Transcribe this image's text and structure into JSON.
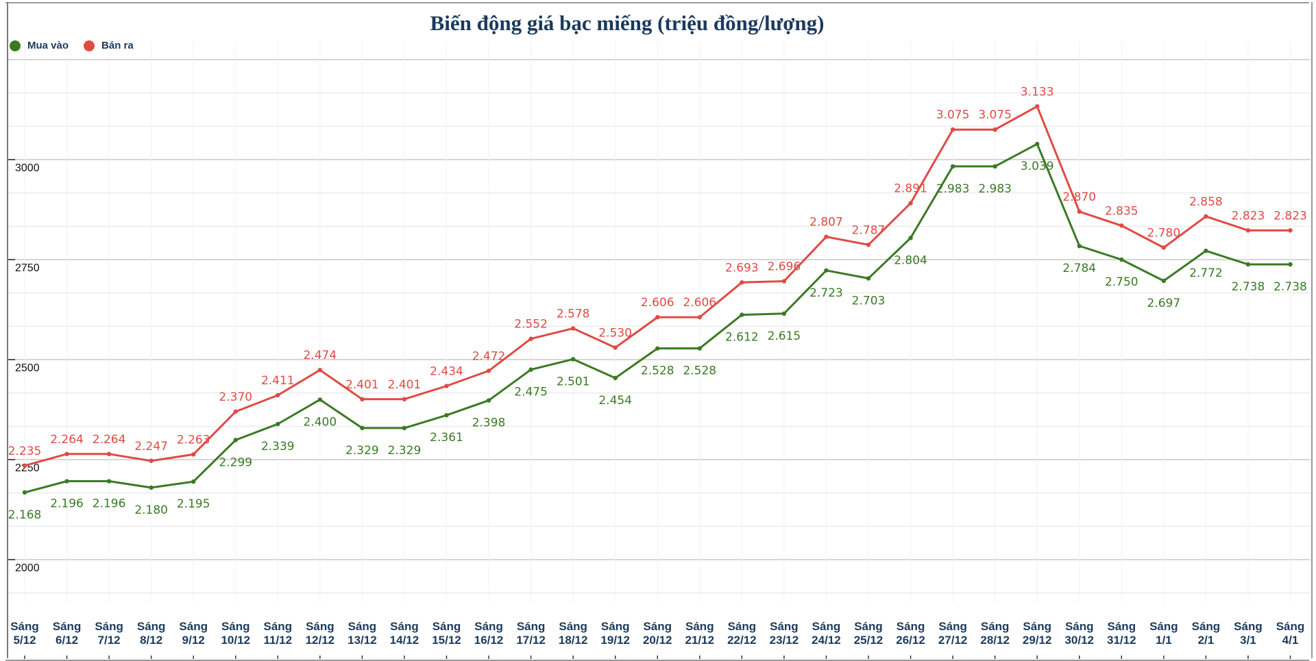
{
  "chart_data": {
    "type": "line",
    "title": "Biến động giá bạc miếng (triệu đồng/lượng)",
    "xlabel": "",
    "ylabel": "",
    "ylim": [
      1850,
      3250
    ],
    "yticks": [
      2000,
      2250,
      2500,
      2750,
      3000
    ],
    "grid": true,
    "legend_position": "top-left",
    "categories": [
      "Sáng 5/12",
      "Sáng 6/12",
      "Sáng 7/12",
      "Sáng 8/12",
      "Sáng 9/12",
      "Sáng 10/12",
      "Sáng 11/12",
      "Sáng 12/12",
      "Sáng 13/12",
      "Sáng 14/12",
      "Sáng 15/12",
      "Sáng 16/12",
      "Sáng 17/12",
      "Sáng 18/12",
      "Sáng 19/12",
      "Sáng 20/12",
      "Sáng 21/12",
      "Sáng 22/12",
      "Sáng 23/12",
      "Sáng 24/12",
      "Sáng 25/12",
      "Sáng 26/12",
      "Sáng 27/12",
      "Sáng 28/12",
      "Sáng 29/12",
      "Sáng 30/12",
      "Sáng 31/12",
      "Sáng 1/1",
      "Sáng 2/1",
      "Sáng 3/1",
      "Sáng 4/1"
    ],
    "series": [
      {
        "name": "Mua vào",
        "color": "#3a7a23",
        "values": [
          2168,
          2196,
          2196,
          2180,
          2195,
          2299,
          2339,
          2400,
          2329,
          2329,
          2361,
          2398,
          2475,
          2501,
          2454,
          2528,
          2528,
          2612,
          2615,
          2723,
          2703,
          2804,
          2983,
          2983,
          3039,
          2784,
          2750,
          2697,
          2772,
          2738,
          2738
        ],
        "labels": [
          "2.168",
          "2.196",
          "2.196",
          "2.180",
          "2.195",
          "2.299",
          "2.339",
          "2.400",
          "2.329",
          "2.329",
          "2.361",
          "2.398",
          "2.475",
          "2.501",
          "2.454",
          "2.528",
          "2.528",
          "2.612",
          "2.615",
          "2.723",
          "2.703",
          "2.804",
          "2.983",
          "2.983",
          "3.039",
          "2.784",
          "2.750",
          "2.697",
          "2.772",
          "2.738",
          "2.738"
        ]
      },
      {
        "name": "Bán ra",
        "color": "#e04a43",
        "values": [
          2235,
          2264,
          2264,
          2247,
          2263,
          2370,
          2411,
          2474,
          2401,
          2401,
          2434,
          2472,
          2552,
          2578,
          2530,
          2606,
          2606,
          2693,
          2696,
          2807,
          2787,
          2891,
          3075,
          3075,
          3133,
          2870,
          2835,
          2780,
          2858,
          2823,
          2823
        ],
        "labels": [
          "2.235",
          "2.264",
          "2.264",
          "2.247",
          "2.263",
          "2.370",
          "2.411",
          "2.474",
          "2.401",
          "2.401",
          "2.434",
          "2.472",
          "2.552",
          "2.578",
          "2.530",
          "2.606",
          "2.606",
          "2.693",
          "2.696",
          "2.807",
          "2.787",
          "2.891",
          "3.075",
          "3.075",
          "3.133",
          "2.870",
          "2.835",
          "2.780",
          "2.858",
          "2.823",
          "2.823"
        ]
      }
    ]
  },
  "legend": {
    "items": [
      {
        "label": "Mua vào",
        "color": "#3a7a23"
      },
      {
        "label": "Bán ra",
        "color": "#e04a43"
      }
    ]
  },
  "x_labels": [
    [
      "Sáng",
      "5/12"
    ],
    [
      "Sáng",
      "6/12"
    ],
    [
      "Sáng",
      "7/12"
    ],
    [
      "Sáng",
      "8/12"
    ],
    [
      "Sáng",
      "9/12"
    ],
    [
      "Sáng",
      "10/12"
    ],
    [
      "Sáng",
      "11/12"
    ],
    [
      "Sáng",
      "12/12"
    ],
    [
      "Sáng",
      "13/12"
    ],
    [
      "Sáng",
      "14/12"
    ],
    [
      "Sáng",
      "15/12"
    ],
    [
      "Sáng",
      "16/12"
    ],
    [
      "Sáng",
      "17/12"
    ],
    [
      "Sáng",
      "18/12"
    ],
    [
      "Sáng",
      "19/12"
    ],
    [
      "Sáng",
      "20/12"
    ],
    [
      "Sáng",
      "21/12"
    ],
    [
      "Sáng",
      "22/12"
    ],
    [
      "Sáng",
      "23/12"
    ],
    [
      "Sáng",
      "24/12"
    ],
    [
      "Sáng",
      "25/12"
    ],
    [
      "Sáng",
      "26/12"
    ],
    [
      "Sáng",
      "27/12"
    ],
    [
      "Sáng",
      "28/12"
    ],
    [
      "Sáng",
      "29/12"
    ],
    [
      "Sáng",
      "30/12"
    ],
    [
      "Sáng",
      "31/12"
    ],
    [
      "Sáng",
      "1/1"
    ],
    [
      "Sáng",
      "2/1"
    ],
    [
      "Sáng",
      "3/1"
    ],
    [
      "Sáng",
      "4/1"
    ]
  ]
}
